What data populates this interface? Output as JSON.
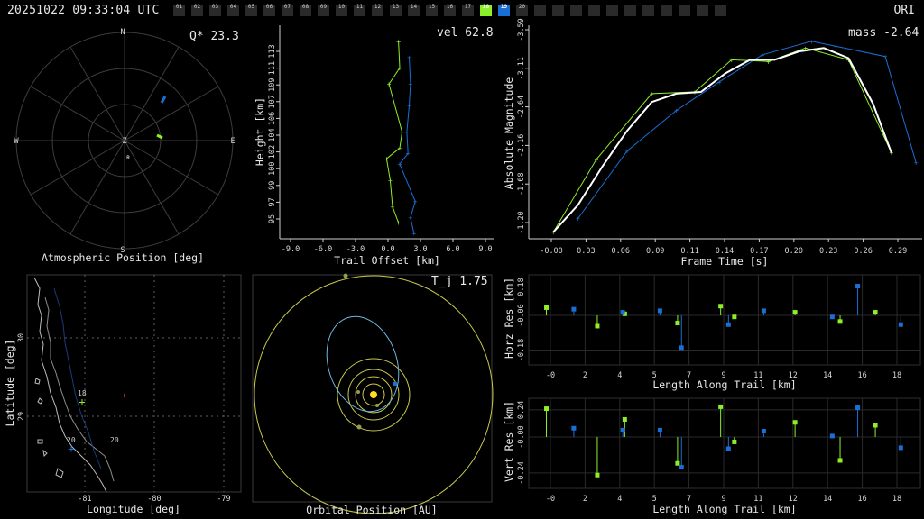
{
  "header": {
    "timestamp": "20251022 09:33:04 UTC",
    "station": "ORI",
    "frames": [
      {
        "n": "01",
        "state": ""
      },
      {
        "n": "02",
        "state": ""
      },
      {
        "n": "03",
        "state": ""
      },
      {
        "n": "04",
        "state": ""
      },
      {
        "n": "05",
        "state": ""
      },
      {
        "n": "06",
        "state": ""
      },
      {
        "n": "07",
        "state": ""
      },
      {
        "n": "08",
        "state": ""
      },
      {
        "n": "09",
        "state": ""
      },
      {
        "n": "10",
        "state": ""
      },
      {
        "n": "11",
        "state": ""
      },
      {
        "n": "12",
        "state": ""
      },
      {
        "n": "13",
        "state": ""
      },
      {
        "n": "14",
        "state": ""
      },
      {
        "n": "15",
        "state": ""
      },
      {
        "n": "16",
        "state": ""
      },
      {
        "n": "17",
        "state": ""
      },
      {
        "n": "18",
        "state": "green"
      },
      {
        "n": "19",
        "state": "blue"
      },
      {
        "n": "20",
        "state": ""
      },
      {
        "n": "",
        "state": ""
      },
      {
        "n": "",
        "state": ""
      },
      {
        "n": "",
        "state": ""
      },
      {
        "n": "",
        "state": ""
      },
      {
        "n": "",
        "state": ""
      },
      {
        "n": "",
        "state": ""
      },
      {
        "n": "",
        "state": ""
      },
      {
        "n": "",
        "state": ""
      },
      {
        "n": "",
        "state": ""
      },
      {
        "n": "",
        "state": ""
      },
      {
        "n": "",
        "state": ""
      }
    ]
  },
  "colors": {
    "green": "#8cf028",
    "blue": "#1a6fd6",
    "white": "#ffffff",
    "grid": "#3a3a3a",
    "yellow": "#c8c84a"
  },
  "polar": {
    "title": "Atmospheric Position [deg]",
    "q_label": "Q* 23.3",
    "cardinals": {
      "n": "N",
      "s": "S",
      "e": "E",
      "w": "W",
      "z": "Z",
      "r": "R"
    }
  },
  "height_plot": {
    "vel_label": "vel 62.8",
    "xlabel": "Trail Offset [km]",
    "ylabel": "Height [km]",
    "xticks": [
      "-9.0",
      "-6.0",
      "-3.0",
      "0.0",
      "3.0",
      "6.0",
      "9.0"
    ],
    "yticks": [
      "95",
      "97",
      "99",
      "100",
      "102",
      "104",
      "106",
      "107",
      "109",
      "111",
      "113"
    ]
  },
  "mag_plot": {
    "mass_label": "mass -2.64",
    "xlabel": "Frame Time [s]",
    "ylabel": "Absolute Magnitude",
    "xticks": [
      "-0.00",
      "0.03",
      "0.06",
      "0.09",
      "0.11",
      "0.14",
      "0.17",
      "0.20",
      "0.23",
      "0.26",
      "0.29"
    ],
    "yticks": [
      "-3.59",
      "-3.11",
      "-2.64",
      "-2.16",
      "-1.68",
      "-1.20"
    ]
  },
  "map_plot": {
    "xlabel": "Longitude [deg]",
    "ylabel": "Latitude [deg]",
    "xticks": [
      "-81",
      "-80",
      "-79"
    ],
    "yticks": [
      "30",
      "29"
    ],
    "labels": {
      "p18": "18",
      "p20": "20",
      "p20b": "20"
    }
  },
  "orbit_plot": {
    "tj_label": "T_j 1.75",
    "xlabel": "Orbital Position [AU]"
  },
  "horz_res": {
    "ylabel": "Horz Res [km]",
    "xlabel": "Length Along Trail [km]",
    "yticks": [
      "0.18",
      "-0.00",
      "-0.18"
    ],
    "xticks": [
      "-0",
      "2",
      "4",
      "5",
      "7",
      "9",
      "11",
      "12",
      "14",
      "16",
      "18"
    ]
  },
  "vert_res": {
    "ylabel": "Vert Res [km]",
    "xlabel": "Length Along Trail [km]",
    "yticks": [
      "0.24",
      "-0.00",
      "-0.24"
    ],
    "xticks": [
      "-0",
      "2",
      "4",
      "5",
      "7",
      "9",
      "11",
      "12",
      "14",
      "16",
      "18"
    ]
  },
  "chart_data": [
    {
      "type": "line",
      "title": "",
      "xlabel": "Trail Offset [km]",
      "ylabel": "Height [km]",
      "xlim": [
        -9.0,
        9.0
      ],
      "ylim": [
        94,
        114
      ],
      "series": [
        {
          "color": "#8cf028",
          "points": [
            [
              0.2,
              112.5
            ],
            [
              0.3,
              110.0
            ],
            [
              -0.6,
              108.5
            ],
            [
              0.5,
              104.0
            ],
            [
              0.3,
              102.5
            ],
            [
              -0.8,
              101.5
            ],
            [
              -0.5,
              99.5
            ],
            [
              -0.3,
              97.0
            ],
            [
              0.2,
              95.5
            ]
          ]
        },
        {
          "color": "#1a6fd6",
          "points": [
            [
              1.1,
              111.0
            ],
            [
              1.2,
              108.5
            ],
            [
              1.1,
              106.5
            ],
            [
              0.9,
              104.0
            ],
            [
              1.0,
              102.0
            ],
            [
              0.3,
              101.0
            ],
            [
              1.6,
              97.5
            ],
            [
              1.2,
              96.0
            ],
            [
              1.5,
              94.5
            ]
          ]
        }
      ]
    },
    {
      "type": "line",
      "title": "",
      "xlabel": "Frame Time [s]",
      "ylabel": "Absolute Magnitude",
      "xlim": [
        -0.02,
        0.3
      ],
      "ylim": [
        -3.65,
        -1.12
      ],
      "series": [
        {
          "color": "#ffffff",
          "points": [
            [
              0.0,
              -1.2
            ],
            [
              0.02,
              -1.52
            ],
            [
              0.04,
              -1.98
            ],
            [
              0.06,
              -2.4
            ],
            [
              0.08,
              -2.74
            ],
            [
              0.1,
              -2.84
            ],
            [
              0.12,
              -2.86
            ],
            [
              0.14,
              -3.08
            ],
            [
              0.16,
              -3.24
            ],
            [
              0.18,
              -3.24
            ],
            [
              0.2,
              -3.34
            ],
            [
              0.22,
              -3.38
            ],
            [
              0.24,
              -3.26
            ],
            [
              0.26,
              -2.72
            ],
            [
              0.275,
              -2.14
            ]
          ]
        },
        {
          "color": "#8cf028",
          "points": [
            [
              0.0,
              -1.2
            ],
            [
              0.035,
              -2.06
            ],
            [
              0.08,
              -2.84
            ],
            [
              0.115,
              -2.86
            ],
            [
              0.145,
              -3.24
            ],
            [
              0.175,
              -3.22
            ],
            [
              0.205,
              -3.38
            ],
            [
              0.24,
              -3.24
            ],
            [
              0.275,
              -2.14
            ]
          ]
        },
        {
          "color": "#1a6fd6",
          "points": [
            [
              0.02,
              -1.36
            ],
            [
              0.06,
              -2.16
            ],
            [
              0.1,
              -2.64
            ],
            [
              0.135,
              -2.98
            ],
            [
              0.17,
              -3.3
            ],
            [
              0.21,
              -3.46
            ],
            [
              0.23,
              -3.4
            ],
            [
              0.27,
              -3.28
            ],
            [
              0.295,
              -2.02
            ]
          ]
        }
      ]
    },
    {
      "type": "scatter",
      "title": "",
      "xlabel": "Length Along Trail [km]",
      "ylabel": "Horz Res [km]",
      "xlim": [
        -1.0,
        19.0
      ],
      "ylim": [
        -0.27,
        0.24
      ],
      "series": [
        {
          "color": "#8cf028",
          "points": [
            [
              -0.1,
              0.05
            ],
            [
              2.5,
              -0.07
            ],
            [
              3.9,
              0.01
            ],
            [
              6.6,
              -0.05
            ],
            [
              8.8,
              0.06
            ],
            [
              9.5,
              -0.01
            ],
            [
              12.6,
              0.02
            ],
            [
              14.9,
              -0.04
            ],
            [
              16.7,
              0.02
            ]
          ]
        },
        {
          "color": "#1a6fd6",
          "points": [
            [
              1.3,
              0.04
            ],
            [
              3.8,
              0.02
            ],
            [
              5.7,
              0.03
            ],
            [
              6.8,
              -0.21
            ],
            [
              9.2,
              -0.06
            ],
            [
              11.0,
              0.03
            ],
            [
              14.5,
              -0.01
            ],
            [
              15.8,
              0.19
            ],
            [
              18.0,
              -0.06
            ]
          ]
        }
      ]
    },
    {
      "type": "scatter",
      "title": "",
      "xlabel": "Length Along Trail [km]",
      "ylabel": "Vert Res [km]",
      "xlim": [
        -1.0,
        19.0
      ],
      "ylim": [
        -0.42,
        0.36
      ],
      "series": [
        {
          "color": "#8cf028",
          "points": [
            [
              -0.1,
              0.29
            ],
            [
              2.5,
              -0.39
            ],
            [
              3.9,
              0.18
            ],
            [
              6.6,
              -0.27
            ],
            [
              8.8,
              0.31
            ],
            [
              9.5,
              -0.05
            ],
            [
              12.6,
              0.15
            ],
            [
              14.9,
              -0.24
            ],
            [
              16.7,
              0.12
            ]
          ]
        },
        {
          "color": "#1a6fd6",
          "points": [
            [
              1.3,
              0.09
            ],
            [
              3.8,
              0.07
            ],
            [
              5.7,
              0.07
            ],
            [
              6.8,
              -0.31
            ],
            [
              9.2,
              -0.12
            ],
            [
              11.0,
              0.06
            ],
            [
              14.5,
              0.01
            ],
            [
              15.8,
              0.3
            ],
            [
              18.0,
              -0.11
            ]
          ]
        }
      ]
    }
  ]
}
